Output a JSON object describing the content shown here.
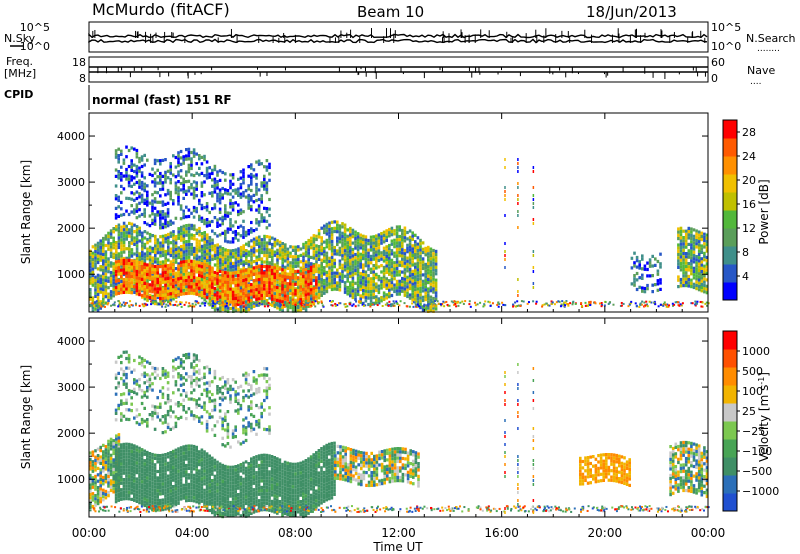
{
  "header": {
    "station": "McMurdo (fitACF)",
    "beam": "Beam 10",
    "date": "18/Jun/2013"
  },
  "side_labels": {
    "nsky": "N.Sky",
    "freq": "Freq.",
    "freq_unit": "[MHz]",
    "cpid": "CPID",
    "nsearch": "N.Search",
    "nave": "Nave",
    "nsearch_dots": "........",
    "nave_dots": "...."
  },
  "cpid_text": "normal (fast) 151 RF",
  "chart_data": [
    {
      "type": "line",
      "panel": "noise",
      "left_ticks": [
        "10^5",
        "10^0"
      ],
      "right_ticks": [
        "10^5",
        "10^0"
      ],
      "series": [
        {
          "name": "N.Sky",
          "trend": "flat near 10^3"
        },
        {
          "name": "N.Search",
          "trend": "flat near 10^3"
        }
      ]
    },
    {
      "type": "line",
      "panel": "frequency",
      "left_ticks": [
        18,
        8
      ],
      "right_ticks": [
        60,
        0
      ],
      "series": [
        {
          "name": "Freq.",
          "approx_value": 11
        },
        {
          "name": "Nave",
          "approx_value": 25
        }
      ]
    },
    {
      "type": "heatmap",
      "panel": "power",
      "ylabel": "Slant Range [km]",
      "yticks": [
        1000,
        2000,
        3000,
        4000
      ],
      "ylim": [
        180,
        4500
      ],
      "colorbar_label": "Power [dB]",
      "colorbar_ticks": [
        4,
        8,
        12,
        16,
        20,
        24,
        28
      ],
      "colorbar_range": [
        0,
        30
      ],
      "colors": [
        "#0000ff",
        "#2757c6",
        "#3f8f8a",
        "#5a9e5a",
        "#52b83b",
        "#c0c000",
        "#f0c000",
        "#ff9000",
        "#ff5a00",
        "#ff0000"
      ],
      "regions": [
        {
          "t": [
            0,
            13.5
          ],
          "r": [
            350,
            1850
          ],
          "level": "medium",
          "desc": "main E/F band echoes"
        },
        {
          "t": [
            1.0,
            8.8
          ],
          "r": [
            500,
            1200
          ],
          "level": "high"
        },
        {
          "t": [
            1.0,
            7.0
          ],
          "r": [
            2000,
            3500
          ],
          "level": "low"
        },
        {
          "t": [
            21.0,
            22.2
          ],
          "r": [
            800,
            1600
          ],
          "level": "low"
        },
        {
          "t": [
            22.8,
            24.0
          ],
          "r": [
            700,
            2000
          ],
          "level": "medium"
        }
      ]
    },
    {
      "type": "heatmap",
      "panel": "velocity",
      "ylabel": "Slant Range [km]",
      "yticks": [
        1000,
        2000,
        3000,
        4000
      ],
      "ylim": [
        180,
        4500
      ],
      "xlabel": "Time UT",
      "xticks": [
        "00:00",
        "04:00",
        "08:00",
        "12:00",
        "16:00",
        "20:00",
        "00:00"
      ],
      "xlim": [
        0,
        24
      ],
      "colorbar_label": "Velocity [m s^-1]",
      "colorbar_ticks": [
        1000,
        500,
        100,
        25,
        -25,
        -100,
        -500,
        -1000
      ],
      "colors": [
        "#2050d0",
        "#2b6fb8",
        "#3f8f66",
        "#48a455",
        "#7cc850",
        "#c8c8c8",
        "#f2b400",
        "#ff8c00",
        "#ff5000",
        "#ff0000"
      ],
      "regions": [
        {
          "t": [
            0,
            1.2
          ],
          "r": [
            600,
            1800
          ],
          "level": "mixed"
        },
        {
          "t": [
            1.0,
            9.5
          ],
          "r": [
            300,
            1550
          ],
          "level": "green"
        },
        {
          "t": [
            9.5,
            12.8
          ],
          "r": [
            900,
            1600
          ],
          "level": "mixed"
        },
        {
          "t": [
            19.0,
            21.0
          ],
          "r": [
            900,
            1500
          ],
          "level": "orange"
        },
        {
          "t": [
            22.5,
            24.0
          ],
          "r": [
            700,
            1800
          ],
          "level": "mixed"
        }
      ]
    }
  ]
}
